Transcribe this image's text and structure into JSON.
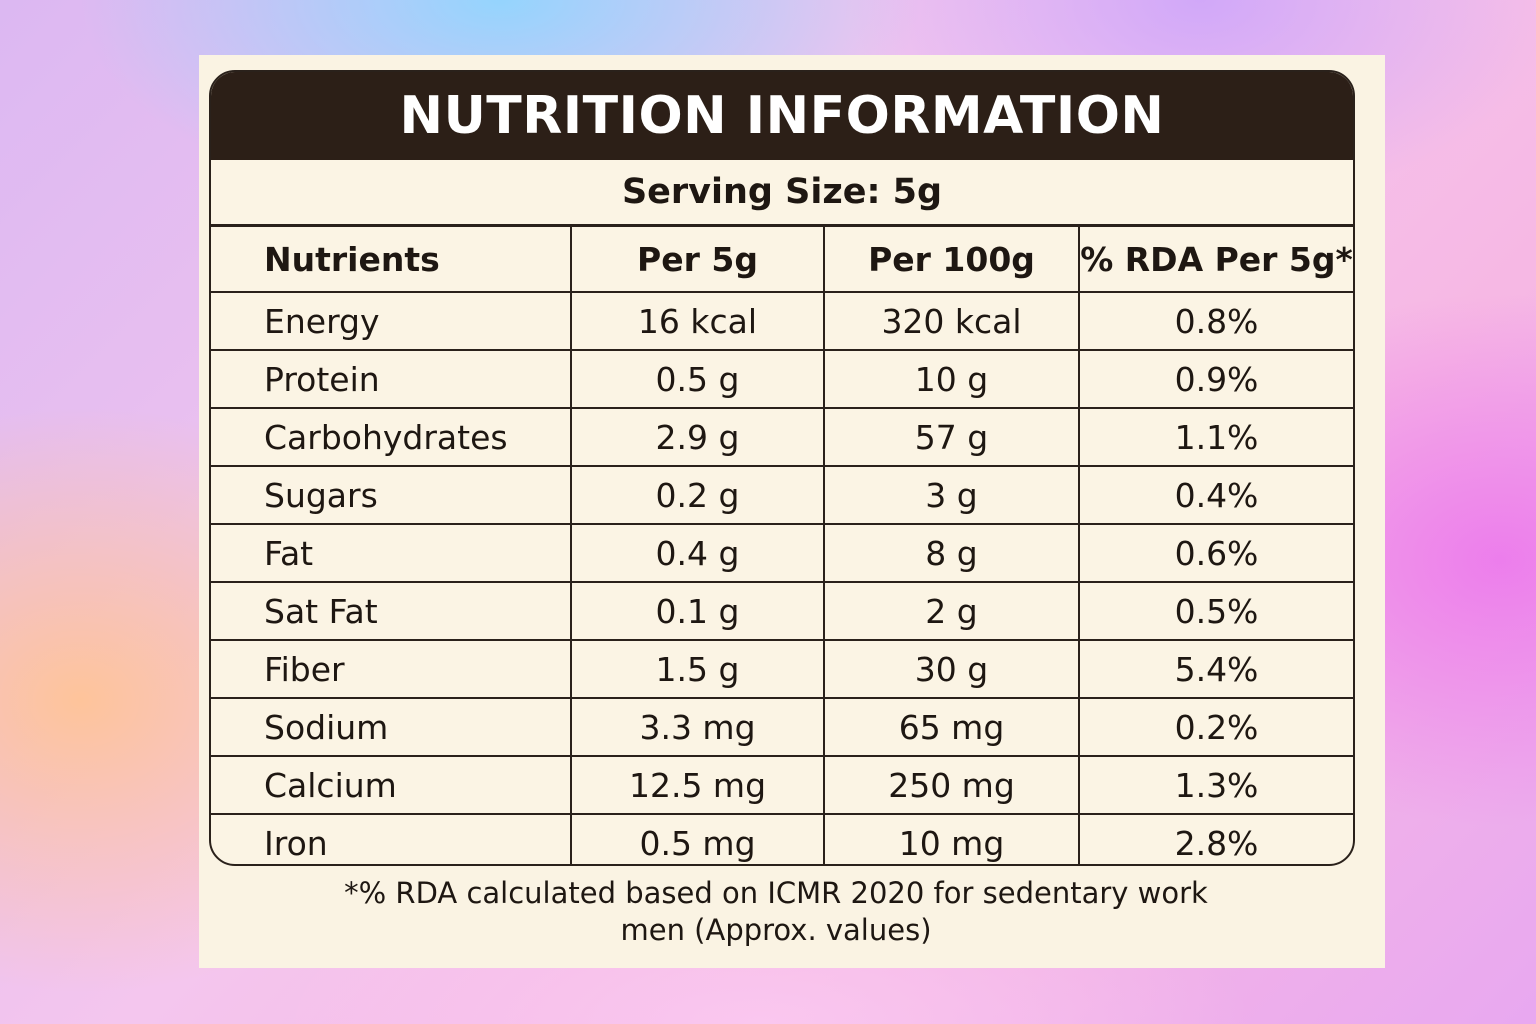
{
  "title": "NUTRITION INFORMATION",
  "serving_size": "Serving Size: 5g",
  "columns": [
    "Nutrients",
    "Per 5g",
    "Per 100g",
    "% RDA Per 5g*"
  ],
  "rows": [
    [
      "Energy",
      "16 kcal",
      "320 kcal",
      "0.8%"
    ],
    [
      "Protein",
      "0.5 g",
      "10 g",
      "0.9%"
    ],
    [
      "Carbohydrates",
      "2.9 g",
      "57 g",
      "1.1%"
    ],
    [
      "Sugars",
      "0.2 g",
      "3 g",
      "0.4%"
    ],
    [
      "Fat",
      "0.4 g",
      "8 g",
      "0.6%"
    ],
    [
      "Sat Fat",
      "0.1 g",
      "2 g",
      "0.5%"
    ],
    [
      "Fiber",
      "1.5 g",
      "30 g",
      "5.4%"
    ],
    [
      "Sodium",
      "3.3 mg",
      "65 mg",
      "0.2%"
    ],
    [
      "Calcium",
      "12.5 mg",
      "250 mg",
      "1.3%"
    ],
    [
      "Iron",
      "0.5 mg",
      "10 mg",
      "2.8%"
    ]
  ],
  "footnote": {
    "line1": "*% RDA calculated based on ICMR 2020 for sedentary work",
    "line2": "men (Approx. values)"
  },
  "colors": {
    "header_bg": "#2c1f17",
    "panel_bg": "#faf3e3",
    "text": "#1e1712"
  }
}
